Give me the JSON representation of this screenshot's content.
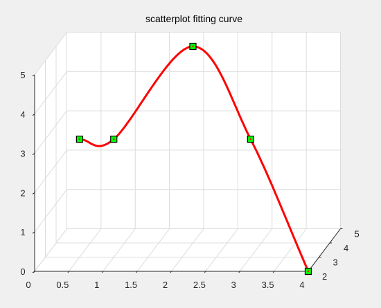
{
  "chart_data": {
    "type": "scatter",
    "title": "scatterplot fitting curve",
    "grid": true,
    "xlim": [
      0,
      4
    ],
    "ylim": [
      2,
      5
    ],
    "zlim": [
      0,
      5
    ],
    "xticks": [
      "0",
      "0.5",
      "1",
      "1.5",
      "2",
      "2.5",
      "3",
      "3.5",
      "4"
    ],
    "yticks": [
      "2",
      "3",
      "4",
      "5"
    ],
    "zticks": [
      "0",
      "1",
      "2",
      "3",
      "4",
      "5"
    ],
    "points": [
      {
        "x": 0.5,
        "y": 3,
        "z": 3
      },
      {
        "x": 1,
        "y": 3,
        "z": 3
      },
      {
        "x": 2,
        "y": 4,
        "z": 5
      },
      {
        "x": 3,
        "y": 3,
        "z": 3
      },
      {
        "x": 4,
        "y": 2,
        "z": 0
      }
    ],
    "marker_color": "#00ff00",
    "marker_edge": "#000000",
    "curve_color": "#ff0000",
    "axes_background": "#ffffff",
    "grid_color": "#dcdcdc"
  }
}
